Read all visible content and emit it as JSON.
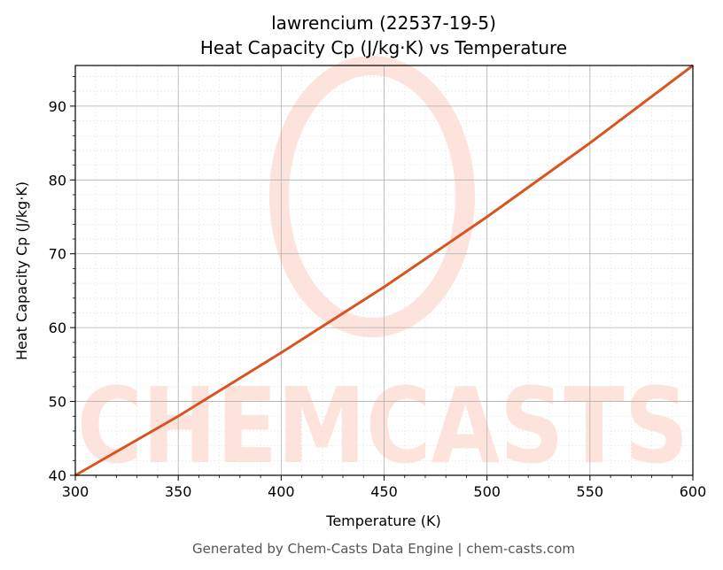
{
  "chart_data": {
    "type": "line",
    "title_line1": "lawrencium (22537-19-5)",
    "title_line2": "Heat Capacity Cp (J/kg·K) vs Temperature",
    "xlabel": "Temperature (K)",
    "ylabel": "Heat Capacity Cp (J/kg·K)",
    "xlim": [
      300,
      600
    ],
    "ylim": [
      40,
      95.5
    ],
    "xticks": [
      300,
      350,
      400,
      450,
      500,
      550,
      600
    ],
    "yticks": [
      40,
      50,
      60,
      70,
      80,
      90
    ],
    "grid": true,
    "series": [
      {
        "color": "#d9541e",
        "x": [
          300,
          350,
          400,
          450,
          500,
          550,
          600
        ],
        "y": [
          40,
          48.0,
          56.6,
          65.5,
          75.0,
          85.0,
          95.5
        ]
      }
    ]
  },
  "watermark": {
    "text": "CHEMCASTS",
    "color": "#fde3dc"
  },
  "footer": "Generated by Chem-Casts Data Engine | chem-casts.com"
}
